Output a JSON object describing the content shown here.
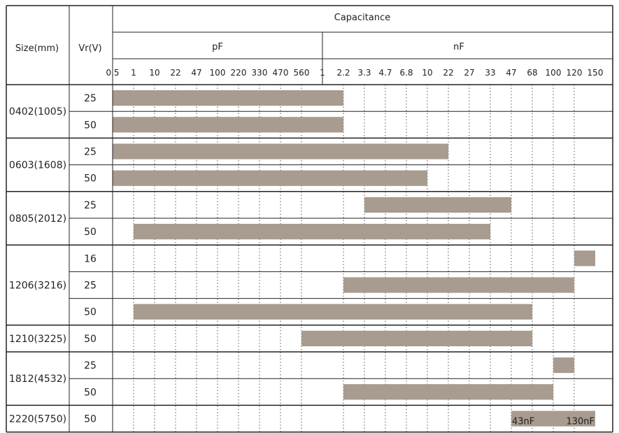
{
  "chart_data": {
    "type": "bar",
    "orientation": "horizontal-range",
    "header": {
      "size_label": "Size(mm)",
      "voltage_label": "Vr(V)",
      "capacitance_label": "Capacitance",
      "unit_groups": [
        {
          "label": "pF",
          "from_tick": 0,
          "to_tick": 10
        },
        {
          "label": "nF",
          "from_tick": 10,
          "to_tick": 23
        }
      ]
    },
    "ticks": [
      "0.5",
      "1",
      "10",
      "22",
      "47",
      "100",
      "220",
      "330",
      "470",
      "560",
      "1",
      "2.2",
      "3.3",
      "4.7",
      "6.8",
      "10",
      "22",
      "27",
      "33",
      "47",
      "68",
      "100",
      "120",
      "150"
    ],
    "bar_color": "#a89b8f",
    "groups": [
      {
        "size": "0402(1005)",
        "rows": [
          {
            "voltage": "25",
            "bars": [
              {
                "from": "0.5pF",
                "to": "2.2nF",
                "from_tick": 0,
                "to_tick": 11
              }
            ]
          },
          {
            "voltage": "50",
            "bars": [
              {
                "from": "0.5pF",
                "to": "2.2nF",
                "from_tick": 0,
                "to_tick": 11
              }
            ]
          }
        ]
      },
      {
        "size": "0603(1608)",
        "rows": [
          {
            "voltage": "25",
            "bars": [
              {
                "from": "0.5pF",
                "to": "22nF",
                "from_tick": 0,
                "to_tick": 16
              }
            ]
          },
          {
            "voltage": "50",
            "bars": [
              {
                "from": "0.5pF",
                "to": "10nF",
                "from_tick": 0,
                "to_tick": 15
              }
            ]
          }
        ]
      },
      {
        "size": "0805(2012)",
        "rows": [
          {
            "voltage": "25",
            "bars": [
              {
                "from": "3.3nF",
                "to": "47nF",
                "from_tick": 12,
                "to_tick": 19
              }
            ]
          },
          {
            "voltage": "50",
            "bars": [
              {
                "from": "1pF",
                "to": "33nF",
                "from_tick": 1,
                "to_tick": 18
              }
            ]
          }
        ]
      },
      {
        "size": "1206(3216)",
        "rows": [
          {
            "voltage": "16",
            "bars": [
              {
                "from": "120nF",
                "to": "150nF",
                "from_tick": 22,
                "to_tick": 23
              }
            ]
          },
          {
            "voltage": "25",
            "bars": [
              {
                "from": "2.2nF",
                "to": "120nF",
                "from_tick": 11,
                "to_tick": 22
              }
            ]
          },
          {
            "voltage": "50",
            "bars": [
              {
                "from": "1pF",
                "to": "68nF",
                "from_tick": 1,
                "to_tick": 20
              }
            ]
          }
        ]
      },
      {
        "size": "1210(3225)",
        "rows": [
          {
            "voltage": "50",
            "bars": [
              {
                "from": "560pF",
                "to": "68nF",
                "from_tick": 9,
                "to_tick": 20
              }
            ]
          }
        ]
      },
      {
        "size": "1812(4532)",
        "rows": [
          {
            "voltage": "25",
            "bars": [
              {
                "from": "100nF",
                "to": "120nF",
                "from_tick": 21,
                "to_tick": 22
              }
            ]
          },
          {
            "voltage": "50",
            "bars": [
              {
                "from": "2.2nF",
                "to": "100nF",
                "from_tick": 11,
                "to_tick": 21
              }
            ]
          }
        ]
      },
      {
        "size": "2220(5750)",
        "rows": [
          {
            "voltage": "50",
            "bars": [
              {
                "from": "43nF",
                "to": "130nF",
                "from_tick": 19,
                "to_tick": 23,
                "label_start": "43nF",
                "label_end": "130nF"
              }
            ]
          }
        ]
      }
    ]
  }
}
